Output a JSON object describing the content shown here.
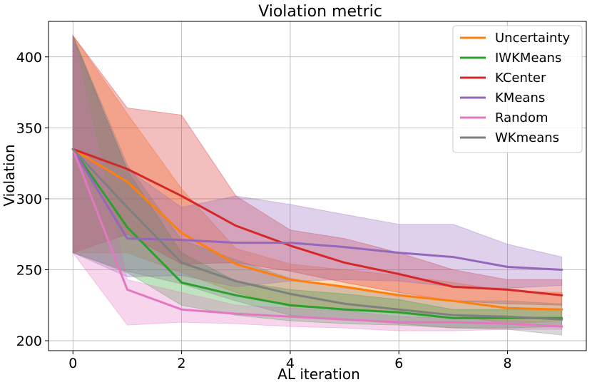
{
  "chart_data": {
    "type": "line",
    "title": "Violation metric",
    "xlabel": "AL iteration",
    "ylabel": "Violation",
    "xlim": [
      -0.45,
      9.45
    ],
    "ylim": [
      193,
      425
    ],
    "xticks": [
      0,
      2,
      4,
      6,
      8
    ],
    "yticks": [
      200,
      250,
      300,
      350,
      400
    ],
    "grid": true,
    "legend_position": "top-right",
    "x": [
      0,
      1,
      2,
      3,
      4,
      5,
      6,
      7,
      8,
      9
    ],
    "series": [
      {
        "name": "Uncertainty",
        "color": "#ff7f0e",
        "values": [
          335,
          312,
          276,
          254,
          243,
          238,
          232,
          228,
          223,
          222
        ],
        "upper": [
          415,
          360,
          307,
          265,
          254,
          250,
          246,
          241,
          235,
          234
        ],
        "lower": [
          262,
          262,
          248,
          234,
          224,
          222,
          220,
          218,
          212,
          214
        ]
      },
      {
        "name": "IWKMeans",
        "color": "#2ca02c",
        "values": [
          335,
          280,
          241,
          232,
          225,
          222,
          220,
          216,
          216,
          216
        ],
        "upper": [
          415,
          320,
          262,
          242,
          236,
          233,
          229,
          222,
          222,
          222
        ],
        "lower": [
          262,
          248,
          225,
          218,
          214,
          212,
          211,
          209,
          209,
          210
        ]
      },
      {
        "name": "KCenter",
        "color": "#d62728",
        "values": [
          335,
          321,
          302,
          281,
          267,
          255,
          247,
          238,
          236,
          232
        ],
        "upper": [
          415,
          364,
          359,
          302,
          278,
          272,
          262,
          250,
          243,
          243
        ],
        "lower": [
          262,
          275,
          254,
          255,
          249,
          241,
          234,
          228,
          226,
          225
        ]
      },
      {
        "name": "KMeans",
        "color": "#9467bd",
        "values": [
          335,
          272,
          271,
          269,
          269,
          266,
          262,
          259,
          252,
          250
        ],
        "upper": [
          413,
          321,
          294,
          302,
          296,
          289,
          282,
          282,
          268,
          259
        ],
        "lower": [
          262,
          245,
          246,
          238,
          242,
          243,
          242,
          238,
          237,
          239
        ]
      },
      {
        "name": "Random",
        "color": "#e377c2",
        "values": [
          335,
          236,
          222,
          219,
          217,
          215,
          213,
          213,
          212,
          210
        ],
        "upper": [
          415,
          243,
          234,
          225,
          223,
          221,
          217,
          216,
          214,
          213
        ],
        "lower": [
          262,
          211,
          213,
          212,
          210,
          209,
          207,
          207,
          208,
          208
        ]
      },
      {
        "name": "WKmeans",
        "color": "#7f7f7f",
        "values": [
          335,
          294,
          255,
          242,
          233,
          226,
          222,
          218,
          217,
          215
        ],
        "upper": [
          415,
          324,
          271,
          257,
          244,
          237,
          233,
          228,
          228,
          226
        ],
        "lower": [
          262,
          249,
          240,
          228,
          218,
          215,
          212,
          209,
          208,
          204
        ]
      }
    ]
  }
}
